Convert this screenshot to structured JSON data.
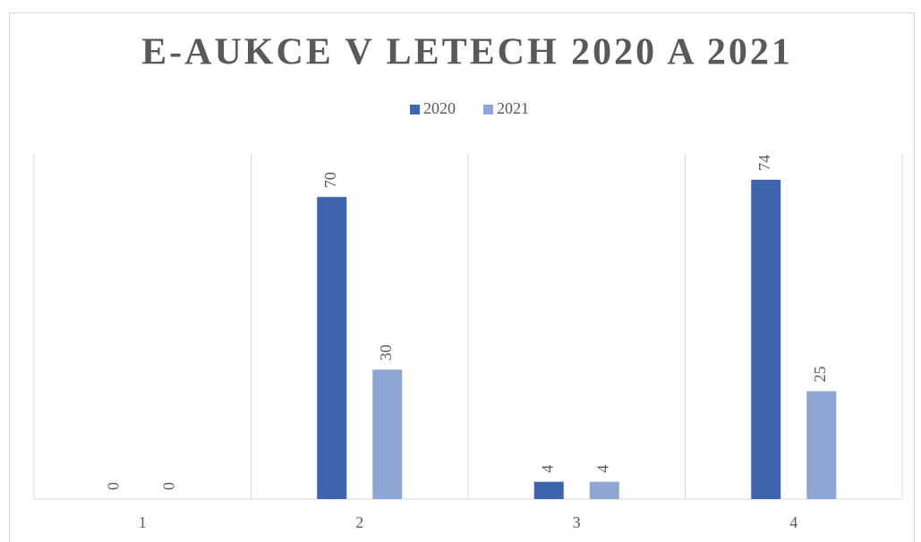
{
  "chart_data": {
    "type": "bar",
    "title": "E-AUKCE V LETECH 2020 A 2021",
    "categories": [
      "1",
      "2",
      "3",
      "4"
    ],
    "series": [
      {
        "name": "2020",
        "color": "#3d64ad",
        "values": [
          0,
          70,
          4,
          74
        ]
      },
      {
        "name": "2021",
        "color": "#8fa5d4",
        "values": [
          0,
          30,
          4,
          25
        ]
      }
    ],
    "ylim": [
      0,
      80
    ],
    "legend": "top"
  }
}
